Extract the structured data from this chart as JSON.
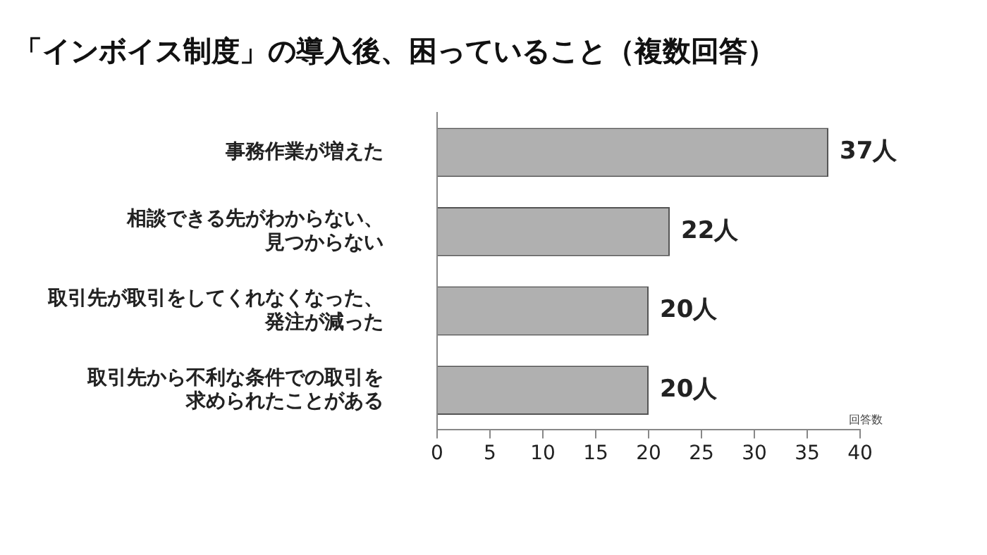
{
  "chart_data": {
    "type": "bar",
    "orientation": "horizontal",
    "title": "「インボイス制度」の導入後、困っていること（複数回答）",
    "xlabel": "回答数",
    "categories": [
      "事務作業が増えた",
      "相談できる先がわからない、見つからない",
      "取引先が取引をしてくれなくなった、発注が減った",
      "取引先から不利な条件での取引を求められたことがある"
    ],
    "values": [
      37,
      22,
      20,
      20
    ],
    "color": "#b0b0b0",
    "value_labels": [
      "37人",
      "22人",
      "20人",
      "20人"
    ],
    "xlim": [
      0,
      40
    ],
    "xticks": [
      0,
      5,
      10,
      15,
      20,
      25,
      30,
      35,
      40
    ],
    "grid": false,
    "legend": false
  }
}
